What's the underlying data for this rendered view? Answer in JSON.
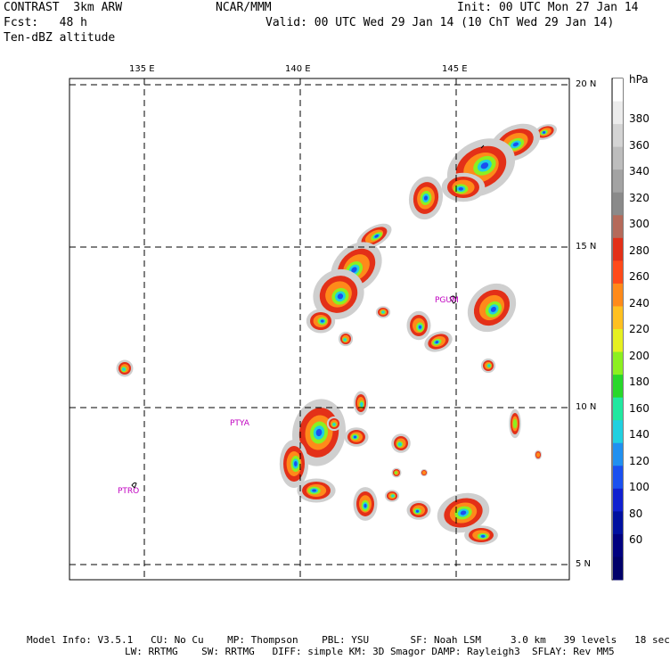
{
  "header": {
    "model": "CONTRAST  3km ARW",
    "org": "NCAR/MMM",
    "init": "Init: 00 UTC Mon 27 Jan 14",
    "fcst": "Fcst:   48 h",
    "valid": "Valid: 00 UTC Wed 29 Jan 14 (10 ChT Wed 29 Jan 14)",
    "field": "Ten-dBZ altitude"
  },
  "axes": {
    "lon_labels": [
      "135 E",
      "140 E",
      "145 E"
    ],
    "lat_labels": [
      "20 N",
      "15 N",
      "10 N",
      "5 N"
    ]
  },
  "stations": [
    "PGUM",
    "PTYA",
    "PTRO"
  ],
  "colorbar": {
    "unit": "hPa",
    "ticks": [
      "380",
      "360",
      "340",
      "320",
      "300",
      "280",
      "260",
      "240",
      "220",
      "200",
      "180",
      "160",
      "140",
      "120",
      "100",
      "80",
      "60"
    ],
    "colors": [
      "#ffffff",
      "#ececec",
      "#d4d4d4",
      "#bdbdbd",
      "#a3a3a3",
      "#8a8a8a",
      "#b56a5a",
      "#e33018",
      "#ff4a1a",
      "#ff8a1a",
      "#ffc020",
      "#e6f020",
      "#8cf020",
      "#28d82a",
      "#20e8a0",
      "#20d0e0",
      "#2090f0",
      "#1a50f0",
      "#1020d0",
      "#0010a0",
      "#000080",
      "#00006a"
    ]
  },
  "footer": {
    "line1": "Model Info: V3.5.1   CU: No Cu    MP: Thompson    PBL: YSU       SF: Noah LSM     3.0 km   39 levels   18 sec",
    "line2": "LW: RRTMG    SW: RRTMG   DIFF: simple KM: 3D Smagor DAMP: Rayleigh3  SFLAY: Rev MM5"
  }
}
